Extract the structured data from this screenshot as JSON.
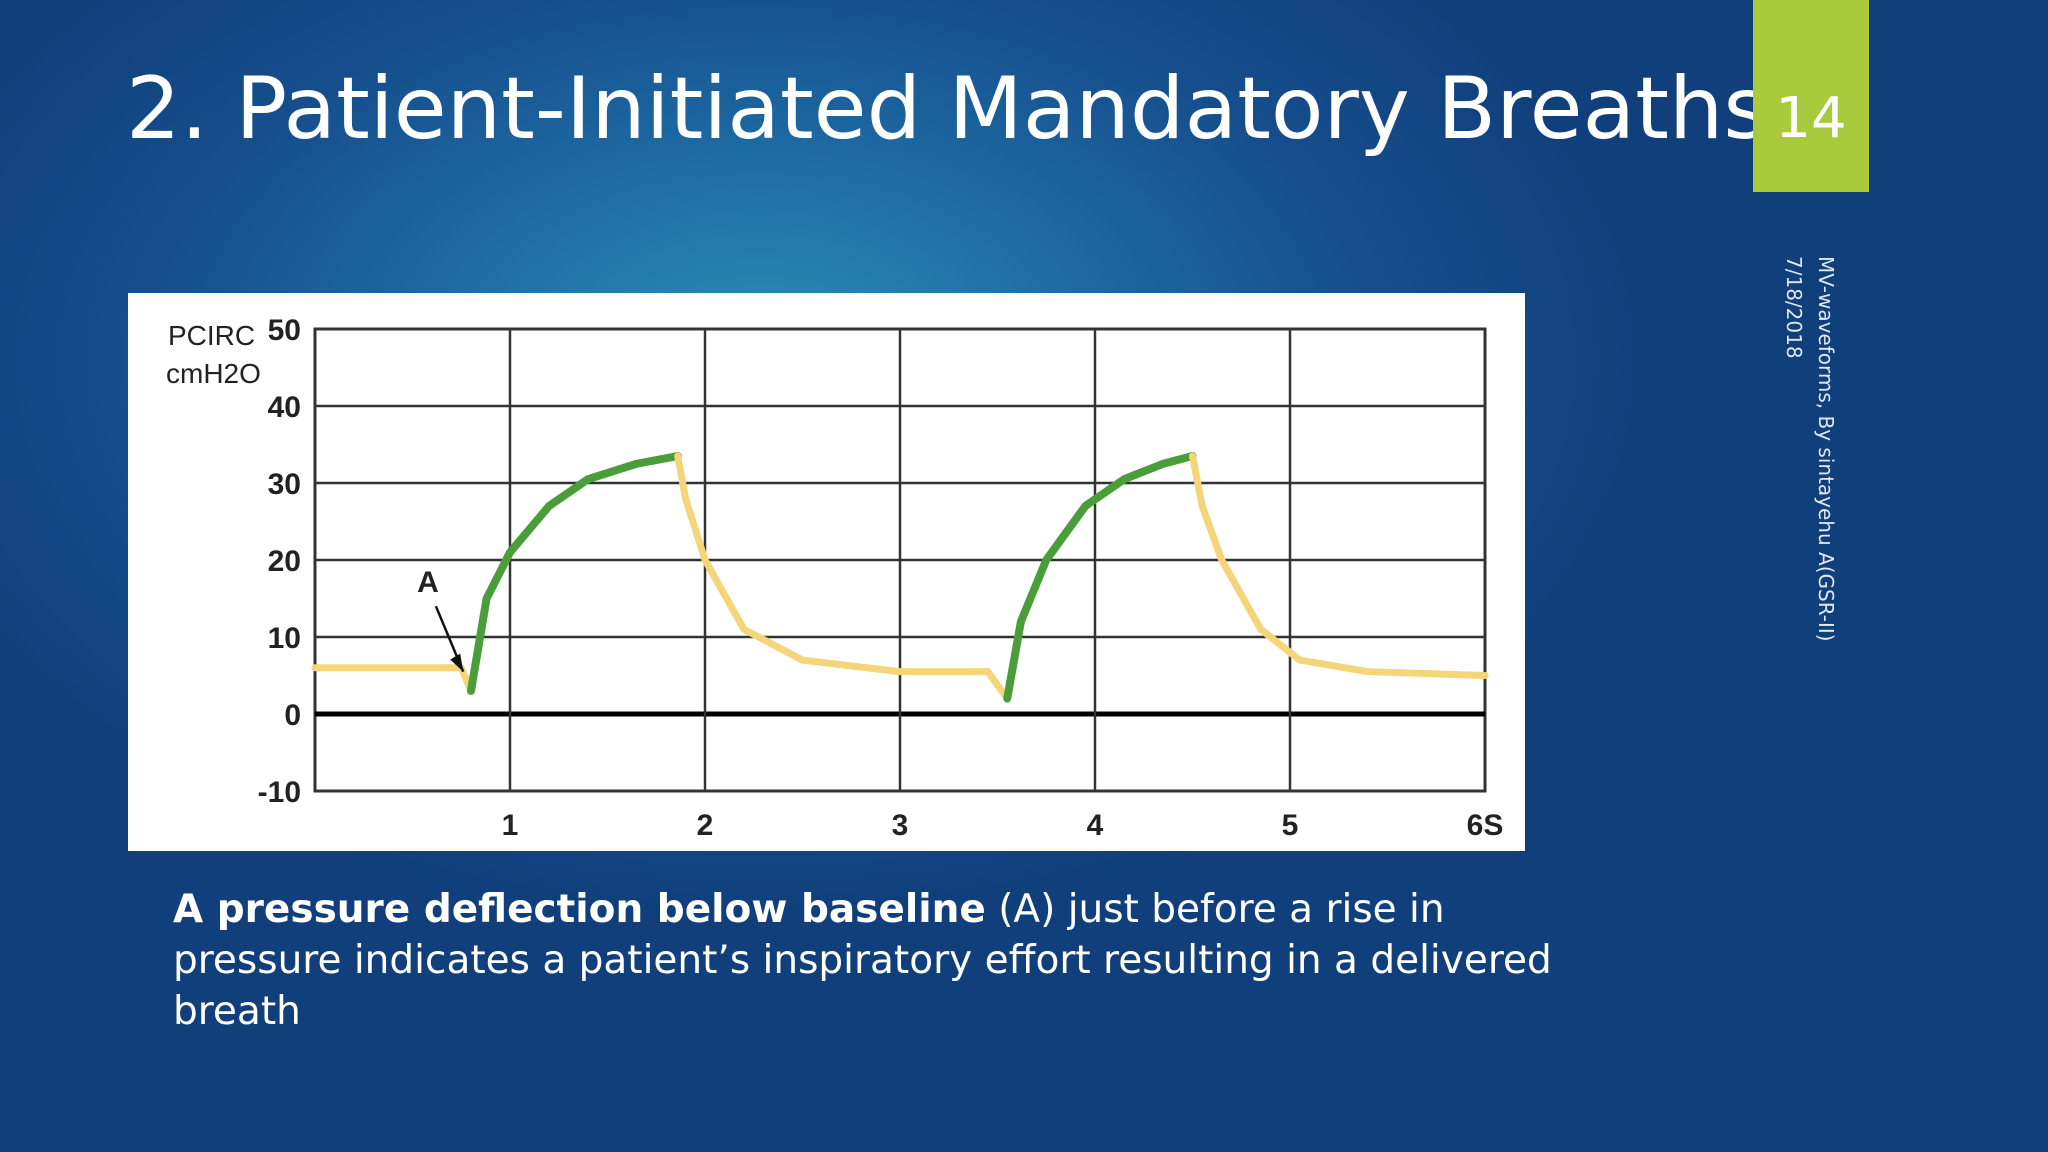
{
  "slide": {
    "title": "2. Patient-Initiated Mandatory Breaths",
    "page_number": "14",
    "side_note_line1": "MV-waveforms, By sintayehu A(GSR-II)",
    "side_note_line2": "7/18/2018",
    "caption_bold": "A pressure deflection below baseline",
    "caption_rest": " (A) just before a rise in pressure indicates a patient’s inspiratory effort resulting in a delivered breath",
    "colors": {
      "badge": "#a8ca3c",
      "inspiration_curve": "#4a9e3a",
      "baseline_curve": "#f5d57a"
    }
  },
  "chart_data": {
    "type": "line",
    "ylabel_line1": "PCIRC",
    "ylabel_line2": "cmH2O",
    "ylim": [
      -10,
      50
    ],
    "xlim": [
      0,
      6
    ],
    "y_ticks": [
      "50",
      "40",
      "30",
      "20",
      "10",
      "0",
      "-10"
    ],
    "x_ticks": [
      "1",
      "2",
      "3",
      "4",
      "5",
      "6S"
    ],
    "annotation": "A",
    "series": [
      {
        "x": [
          0,
          0.75,
          0.8
        ],
        "y": [
          6,
          6,
          3
        ]
      },
      {
        "x": [
          0.8,
          0.88,
          1.0,
          1.2,
          1.4,
          1.65,
          1.86
        ],
        "y": [
          3,
          15,
          21,
          27,
          30.5,
          32.5,
          33.5
        ]
      },
      {
        "x": [
          1.86,
          1.9,
          2.0,
          2.2,
          2.5,
          3.0,
          3.45,
          3.55
        ],
        "y": [
          33.5,
          28,
          20,
          11,
          7,
          5.5,
          5.5,
          2
        ]
      },
      {
        "x": [
          3.55,
          3.62,
          3.75,
          3.95,
          4.15,
          4.35,
          4.5
        ],
        "y": [
          2,
          12,
          20,
          27,
          30.5,
          32.5,
          33.5
        ]
      },
      {
        "x": [
          4.5,
          4.55,
          4.65,
          4.85,
          5.05,
          5.4,
          6.0
        ],
        "y": [
          33.5,
          27,
          20,
          11,
          7,
          5.5,
          5
        ]
      }
    ]
  }
}
